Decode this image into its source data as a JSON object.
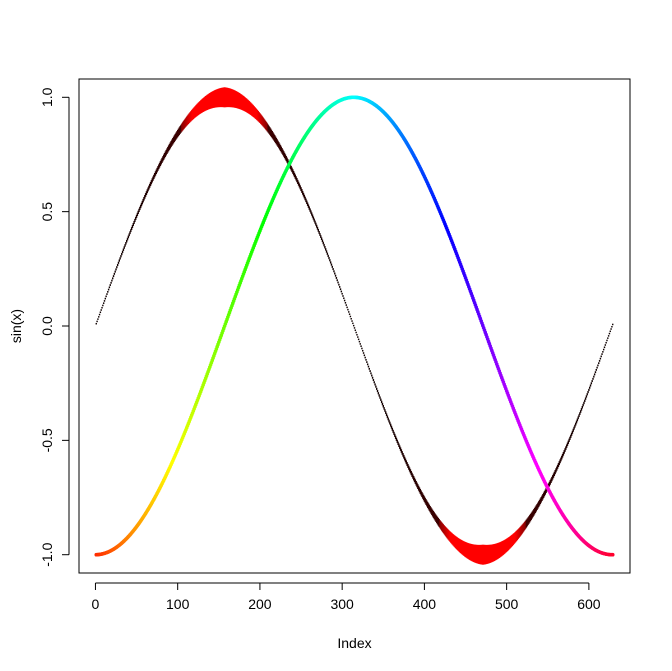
{
  "chart_data": {
    "type": "scatter",
    "title": "",
    "xlabel": "Index",
    "ylabel": "sin(x)",
    "xlim": [
      -20,
      650
    ],
    "ylim": [
      -1.08,
      1.08
    ],
    "x_ticks": [
      0,
      100,
      200,
      300,
      400,
      500,
      600
    ],
    "x_tick_labels": [
      "0",
      "100",
      "200",
      "300",
      "400",
      "500",
      "600"
    ],
    "y_ticks": [
      -1.0,
      -0.5,
      0.0,
      0.5,
      1.0
    ],
    "y_tick_labels": [
      "-1.0",
      "-0.5",
      "0.0",
      "0.5",
      "1.0"
    ],
    "grid": false,
    "legend": "none",
    "n_points": 629,
    "series": [
      {
        "formula": "y = -cos(i/100)",
        "x_range": [
          1,
          629
        ],
        "color_map": "rainbow",
        "line_width": "thin"
      },
      {
        "formula": "y = sin(i/100)",
        "x_range": [
          1,
          629
        ],
        "color_map": "red-to-black gradient, varying",
        "line_width": "variable, thick"
      }
    ],
    "colors": {
      "axis": "#000000",
      "background": "#ffffff",
      "thick_series_base": "#ff0000",
      "thick_series_dark": "#000000"
    }
  }
}
